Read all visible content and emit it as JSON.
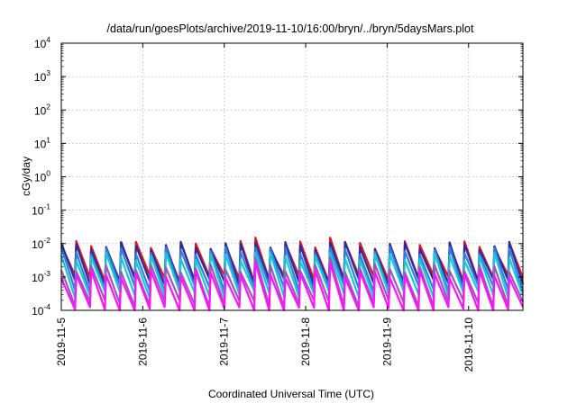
{
  "chart_data": {
    "type": "line",
    "title": "/data/run/goesPlots/archive/2019-11-10/16:00/bryn/../bryn/5daysMars.plot",
    "xlabel": "Coordinated Universal Time (UTC)",
    "ylabel": "cGy/day",
    "yscale": "log",
    "ylim": [
      0.0001,
      10000
    ],
    "xlim": [
      "2019-11-05",
      "2019-11-10T16:00"
    ],
    "grid": true,
    "y_ticks": [
      {
        "base": "10",
        "exp": "4"
      },
      {
        "base": "10",
        "exp": "3"
      },
      {
        "base": "10",
        "exp": "2"
      },
      {
        "base": "10",
        "exp": "1"
      },
      {
        "base": "10",
        "exp": "0"
      },
      {
        "base": "10",
        "exp": "-1"
      },
      {
        "base": "10",
        "exp": "-2"
      },
      {
        "base": "10",
        "exp": "-3"
      },
      {
        "base": "10",
        "exp": "-4"
      }
    ],
    "x_ticks": [
      "2019-11-5",
      "2019-11-6",
      "2019-11-7",
      "2019-11-8",
      "2019-11-9",
      "2019-11-10"
    ],
    "pattern": {
      "period_hours": 4.4,
      "spike_dates": [
        "2019-11-07T10:00",
        "2019-11-08T09:00"
      ],
      "spike_peak": 0.015
    },
    "series": [
      {
        "color": "#e8141a",
        "peak": 0.009,
        "trough": 0.0009
      },
      {
        "color": "#2b2ba0",
        "peak": 0.0085,
        "trough": 0.0007
      },
      {
        "color": "#2f7fe0",
        "peak": 0.006,
        "trough": 0.00045
      },
      {
        "color": "#19c8d8",
        "peak": 0.004,
        "trough": 0.0003
      },
      {
        "color": "#9a5ab8",
        "peak": 0.0018,
        "trough": 0.00016
      },
      {
        "color": "#ff10ff",
        "peak": 0.0012,
        "trough": 0.0001
      }
    ]
  }
}
